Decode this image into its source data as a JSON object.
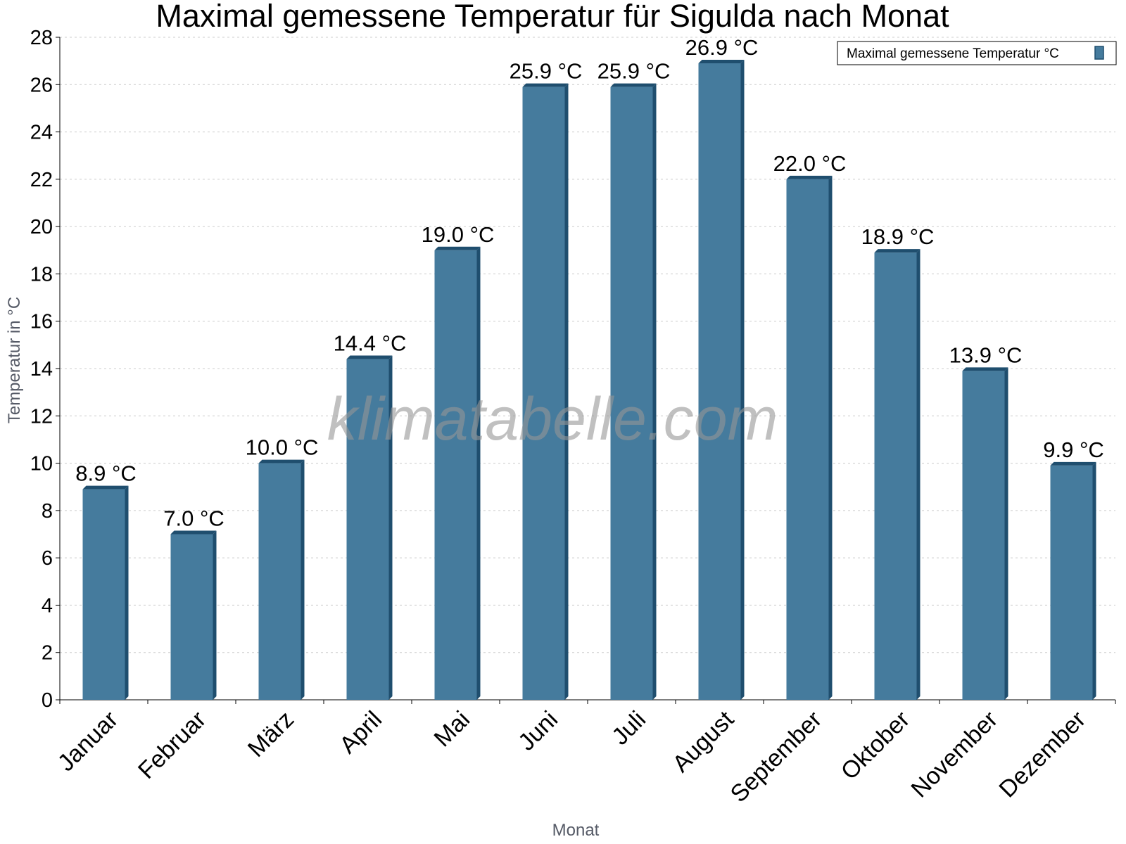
{
  "chart_data": {
    "type": "bar",
    "title": "Maximal gemessene Temperatur für Sigulda nach Monat",
    "xlabel": "Monat",
    "ylabel": "Temperatur in °C",
    "categories": [
      "Januar",
      "Februar",
      "März",
      "April",
      "Mai",
      "Juni",
      "Juli",
      "August",
      "September",
      "Oktober",
      "November",
      "Dezember"
    ],
    "series": [
      {
        "name": "Maximal gemessene Temperatur °C",
        "values": [
          8.9,
          7.0,
          10.0,
          14.4,
          19.0,
          25.9,
          25.9,
          26.9,
          22.0,
          18.9,
          13.9,
          9.9
        ],
        "labels": [
          "8.9 °C",
          "7.0 °C",
          "10.0 °C",
          "14.4 °C",
          "19.0 °C",
          "25.9 °C",
          "25.9 °C",
          "26.9 °C",
          "22.0 °C",
          "18.9 °C",
          "13.9 °C",
          "9.9 °C"
        ]
      }
    ],
    "ylim": [
      0,
      28
    ],
    "yticks": [
      0,
      2,
      4,
      6,
      8,
      10,
      12,
      14,
      16,
      18,
      20,
      22,
      24,
      26,
      28
    ],
    "grid": true,
    "legend_position": "top-right",
    "colors": {
      "bar": "#457b9d",
      "bar_side": "#1f4e6e",
      "grid": "#cccccc"
    }
  },
  "watermark": "klimatabelle.com"
}
